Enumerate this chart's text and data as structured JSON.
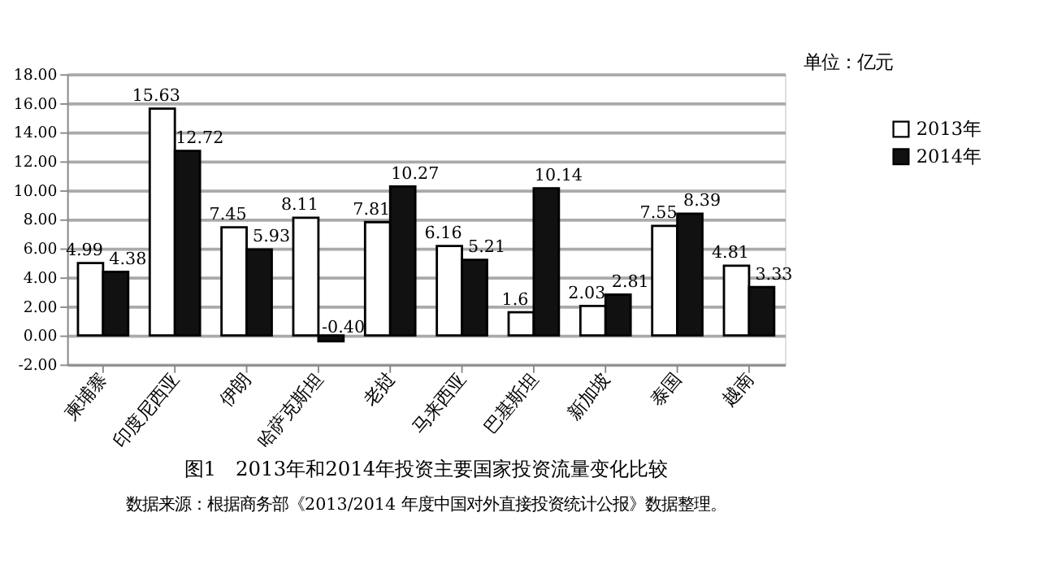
{
  "chart_data": {
    "type": "bar",
    "title": "图1　2013年和2014年投资主要国家投资流量变化比较",
    "categories": [
      "柬埔寨",
      "印度尼西亚",
      "伊朗",
      "哈萨克斯坦",
      "老挝",
      "马来西亚",
      "巴基斯坦",
      "新加坡",
      "泰国",
      "越南"
    ],
    "series": [
      {
        "name": "2013年",
        "color": "#ffffff",
        "values": [
          4.99,
          15.63,
          7.45,
          8.11,
          7.81,
          6.16,
          1.6,
          2.03,
          7.55,
          4.81
        ],
        "value_labels": [
          "4.99",
          "15.63",
          "7.45",
          "8.11",
          "7.81",
          "6.16",
          "1.6",
          "2.03",
          "7.55",
          "4.81"
        ]
      },
      {
        "name": "2014年",
        "color": "#111111",
        "values": [
          4.38,
          12.72,
          5.93,
          -0.4,
          10.27,
          5.21,
          10.14,
          2.81,
          8.39,
          3.33
        ],
        "value_labels": [
          "4.38",
          "12.72",
          "5.93",
          "-0.40",
          "10.27",
          "5.21",
          "10.14",
          "2.81",
          "8.39",
          "3.33"
        ]
      }
    ],
    "ylim": [
      -2,
      18
    ],
    "yticks": [
      {
        "value": -2,
        "label": "-2.00"
      },
      {
        "value": 0,
        "label": "0.00"
      },
      {
        "value": 2,
        "label": "2.00"
      },
      {
        "value": 4,
        "label": "4.00"
      },
      {
        "value": 6,
        "label": "6.00"
      },
      {
        "value": 8,
        "label": "8.00"
      },
      {
        "value": 10,
        "label": "10.00"
      },
      {
        "value": 12,
        "label": "12.00"
      },
      {
        "value": 14,
        "label": "14.00"
      },
      {
        "value": 16,
        "label": "16.00"
      },
      {
        "value": 18,
        "label": "18.00"
      }
    ],
    "grid": "y",
    "legend": "right",
    "annotations": [
      "单位：亿元",
      "数据来源：根据商务部《2013/2014 年度中国对外直接投资统计公报》数据整理。"
    ]
  }
}
